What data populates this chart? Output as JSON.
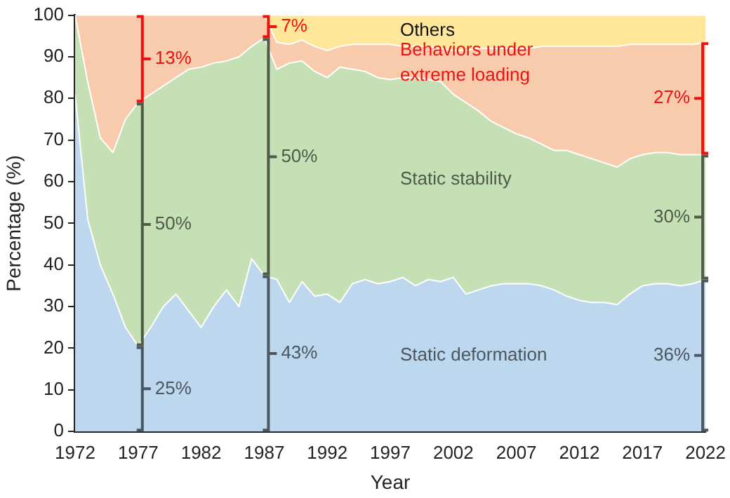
{
  "chart_data": {
    "type": "area",
    "stacked": true,
    "xlabel": "Year",
    "ylabel": "Percentage (%)",
    "x": [
      1972,
      1973,
      1974,
      1975,
      1976,
      1977,
      1978,
      1979,
      1980,
      1981,
      1982,
      1983,
      1984,
      1985,
      1986,
      1987,
      1988,
      1989,
      1990,
      1991,
      1992,
      1993,
      1994,
      1995,
      1996,
      1997,
      1998,
      1999,
      2000,
      2001,
      2002,
      2003,
      2004,
      2005,
      2006,
      2007,
      2008,
      2009,
      2010,
      2011,
      2012,
      2013,
      2014,
      2015,
      2016,
      2017,
      2018,
      2019,
      2020,
      2021,
      2022
    ],
    "xlim": [
      1972,
      2022
    ],
    "xticks": [
      1972,
      1977,
      1982,
      1987,
      1992,
      1997,
      2002,
      2007,
      2012,
      2017,
      2022
    ],
    "ylim": [
      0,
      100
    ],
    "yticks": [
      0,
      10,
      20,
      30,
      40,
      50,
      60,
      70,
      80,
      90,
      100
    ],
    "series": [
      {
        "name": "Static deformation",
        "color": "#bdd7ee",
        "values": [
          81,
          51,
          40,
          33,
          25,
          20.5,
          25,
          30,
          33,
          29,
          25,
          30,
          34,
          30,
          41.5,
          37.5,
          36.5,
          31,
          36,
          32.5,
          33,
          31,
          35.5,
          36.5,
          35.5,
          36,
          37,
          35,
          36.5,
          36,
          37,
          33,
          34,
          35,
          35.5,
          35.5,
          35.5,
          35,
          34,
          32.5,
          31.5,
          31,
          31,
          30.5,
          33,
          35,
          35.5,
          35.5,
          35,
          35.5,
          36.5
        ]
      },
      {
        "name": "Static stability",
        "color": "#c5e0b4",
        "values": [
          19,
          33,
          30.5,
          34,
          50,
          58.5,
          56,
          53,
          52,
          58,
          62.5,
          58.5,
          55,
          60,
          51,
          57,
          50.5,
          57.5,
          53,
          54,
          52,
          56.5,
          51.5,
          50,
          49.5,
          48.5,
          48,
          50,
          48,
          48,
          44,
          46,
          43,
          39.5,
          37.5,
          36,
          35,
          34,
          33.5,
          35,
          35,
          34.5,
          33.5,
          33,
          32.5,
          31.5,
          31.5,
          31.5,
          31.5,
          31,
          30
        ]
      },
      {
        "name": "Behaviors under extreme loading",
        "color": "#f8cbad",
        "values": [
          0,
          16,
          29.5,
          33,
          25,
          21,
          19,
          17,
          15,
          13,
          12.5,
          11.5,
          11,
          10,
          7.5,
          5.5,
          6.5,
          4.5,
          5,
          6,
          6.5,
          5,
          6,
          6.5,
          8,
          8.5,
          7.5,
          7.5,
          8,
          8,
          10.5,
          12.5,
          15,
          17.5,
          19,
          20.5,
          21.5,
          23.5,
          25,
          25,
          26,
          27,
          28,
          29,
          27.5,
          26.5,
          26,
          26,
          26.5,
          26.5,
          27
        ]
      },
      {
        "name": "Others",
        "color": "#ffe699",
        "values": [
          0,
          0,
          0,
          0,
          0,
          0,
          0,
          0,
          0,
          0,
          0,
          0,
          0,
          0,
          0,
          0,
          6.5,
          7,
          6,
          7.5,
          8.5,
          7.5,
          7,
          7,
          7,
          7,
          7.5,
          7.5,
          7.5,
          8,
          8.5,
          8.5,
          8,
          8,
          8,
          8,
          8,
          7.5,
          7.5,
          7.5,
          7.5,
          7.5,
          7.5,
          7.5,
          7,
          7,
          7,
          7,
          7,
          7,
          6.5
        ]
      }
    ],
    "annotations": [
      "25%",
      "50%",
      "13%",
      "43%",
      "50%",
      {
        "text": "7%",
        "x": 1987,
        "y": 97
      },
      "36%",
      "30%",
      "27%"
    ]
  }
}
